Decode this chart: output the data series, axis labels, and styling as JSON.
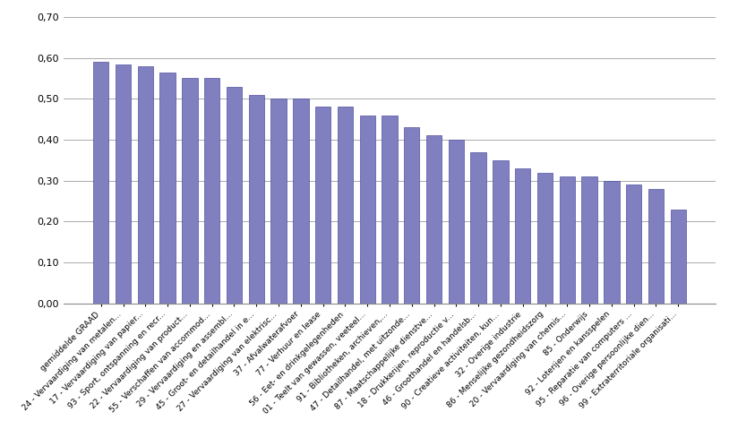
{
  "categories": [
    "gemiddelde GRAAD",
    "24 - Vervaardiging van metalen...",
    "17 - Vervaardiging van papier...",
    "93 - Sport, ontspanning en recr...",
    "22 - Vervaardiging van product...",
    "55 - Verschaffen van accommod...",
    "29 - Vervaardiging en assembl...",
    "45 - Groot- en detailhandel in e...",
    "27 - Vervaardiging van elektrisc...",
    "37 - Afvalwaterafvoer",
    "77 - Verhuur en lease",
    "56 - Eet- en drinkgelegenheden",
    "01 - Teelt van gewassen, veeteel...",
    "91 - Bibliotheken, archieven,...",
    "47 - Detailhandel, met uitzonde...",
    "87 - Maatschappelijke dienstve...",
    "18 - Drukkerijen, reproductie v...",
    "46 - Groothandel en handelsb...",
    "90 - Creatieve activiteiten, kun...",
    "32 - Overige industrie",
    "86 - Menselijke gezondheidszorg",
    "20 - Vervaardiging van chemis...",
    "85 - Onderwijs",
    "92 - Loterijen en kansspelen",
    "95 - Reparatie van computers ...",
    "96 - Overige persoonlijke dien...",
    "99 - Extraterritoriale organisati..."
  ],
  "values": [
    0.59,
    0.585,
    0.58,
    0.565,
    0.55,
    0.55,
    0.53,
    0.51,
    0.5,
    0.5,
    0.48,
    0.48,
    0.46,
    0.46,
    0.43,
    0.41,
    0.4,
    0.37,
    0.35,
    0.33,
    0.32,
    0.31,
    0.31,
    0.3,
    0.29,
    0.28,
    0.23
  ],
  "bar_color": "#8080C0",
  "bar_edge_color": "#5050A0",
  "background_color": "#ffffff",
  "grid_color": "#aaaaaa",
  "ylim_max": 0.7,
  "ytick_step": 0.1,
  "figure_width": 8.14,
  "figure_height": 4.79,
  "dpi": 100
}
